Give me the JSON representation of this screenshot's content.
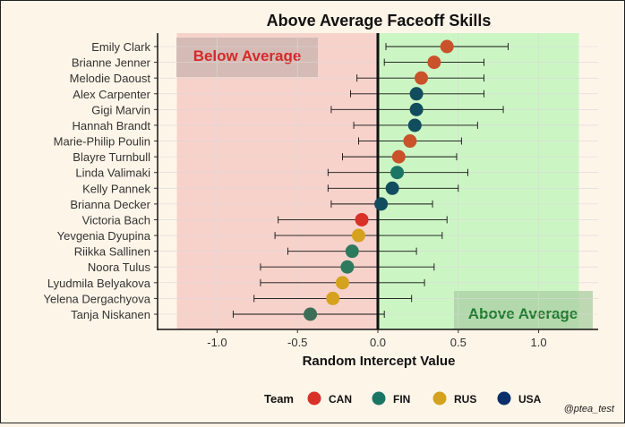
{
  "chart_data": {
    "type": "scatter",
    "title": "Above Average Faceoff Skills",
    "xlabel": "Random Intercept Value",
    "ylabel": "",
    "xlim": [
      -1.37,
      1.37
    ],
    "xticks": [
      -1.0,
      -0.5,
      0.0,
      0.5,
      1.0
    ],
    "xtick_labels": [
      "-1.0",
      "-0.5",
      "0.0",
      "0.5",
      "1.0"
    ],
    "grid": true,
    "regions": [
      {
        "label": "Below Average",
        "xmin": -1.25,
        "xmax": 0.0,
        "color": "#f7d2cb",
        "label_color": "#d42a2a"
      },
      {
        "label": "Above Average",
        "xmin": 0.0,
        "xmax": 1.25,
        "color": "#ccf5c4",
        "label_color": "#1f7a2e"
      }
    ],
    "legend": {
      "title": "Team",
      "position": "bottom",
      "entries": [
        {
          "name": "CAN",
          "color": "#d93028"
        },
        {
          "name": "FIN",
          "color": "#1b7565"
        },
        {
          "name": "RUS",
          "color": "#d4a21e"
        },
        {
          "name": "USA",
          "color": "#0b2f6b"
        }
      ]
    },
    "points": [
      {
        "name": "Emily Clark",
        "x": 0.43,
        "lo": 0.05,
        "hi": 0.81,
        "team": "CAN",
        "color": "#c9522a"
      },
      {
        "name": "Brianne Jenner",
        "x": 0.35,
        "lo": 0.04,
        "hi": 0.66,
        "team": "CAN",
        "color": "#c9522a"
      },
      {
        "name": "Melodie Daoust",
        "x": 0.27,
        "lo": -0.13,
        "hi": 0.66,
        "team": "CAN",
        "color": "#c9522a"
      },
      {
        "name": "Alex Carpenter",
        "x": 0.24,
        "lo": -0.17,
        "hi": 0.66,
        "team": "USA",
        "color": "#114d5e"
      },
      {
        "name": "Gigi Marvin",
        "x": 0.24,
        "lo": -0.29,
        "hi": 0.78,
        "team": "USA",
        "color": "#114d5e"
      },
      {
        "name": "Hannah Brandt",
        "x": 0.23,
        "lo": -0.15,
        "hi": 0.62,
        "team": "USA",
        "color": "#114d5e"
      },
      {
        "name": "Marie-Philip Poulin",
        "x": 0.2,
        "lo": -0.12,
        "hi": 0.52,
        "team": "CAN",
        "color": "#c9522a"
      },
      {
        "name": "Blayre Turnbull",
        "x": 0.13,
        "lo": -0.22,
        "hi": 0.49,
        "team": "CAN",
        "color": "#c9522a"
      },
      {
        "name": "Linda Valimaki",
        "x": 0.12,
        "lo": -0.31,
        "hi": 0.56,
        "team": "FIN",
        "color": "#1b7565"
      },
      {
        "name": "Kelly Pannek",
        "x": 0.09,
        "lo": -0.31,
        "hi": 0.5,
        "team": "USA",
        "color": "#114d5e"
      },
      {
        "name": "Brianna Decker",
        "x": 0.02,
        "lo": -0.29,
        "hi": 0.34,
        "team": "USA",
        "color": "#114d5e"
      },
      {
        "name": "Victoria Bach",
        "x": -0.1,
        "lo": -0.62,
        "hi": 0.43,
        "team": "CAN",
        "color": "#d93028"
      },
      {
        "name": "Yevgenia Dyupina",
        "x": -0.12,
        "lo": -0.64,
        "hi": 0.4,
        "team": "RUS",
        "color": "#d4a21e"
      },
      {
        "name": "Riikka Sallinen",
        "x": -0.16,
        "lo": -0.56,
        "hi": 0.24,
        "team": "FIN",
        "color": "#2e7a5e"
      },
      {
        "name": "Noora Tulus",
        "x": -0.19,
        "lo": -0.73,
        "hi": 0.35,
        "team": "FIN",
        "color": "#2e7a5e"
      },
      {
        "name": "Lyudmila Belyakova",
        "x": -0.22,
        "lo": -0.73,
        "hi": 0.29,
        "team": "RUS",
        "color": "#d4a21e"
      },
      {
        "name": "Yelena Dergachyova",
        "x": -0.28,
        "lo": -0.77,
        "hi": 0.21,
        "team": "RUS",
        "color": "#d4a21e"
      },
      {
        "name": "Tanja Niskanen",
        "x": -0.42,
        "lo": -0.9,
        "hi": 0.04,
        "team": "FIN",
        "color": "#3c6e58"
      }
    ],
    "credit": "@ptea_test"
  }
}
